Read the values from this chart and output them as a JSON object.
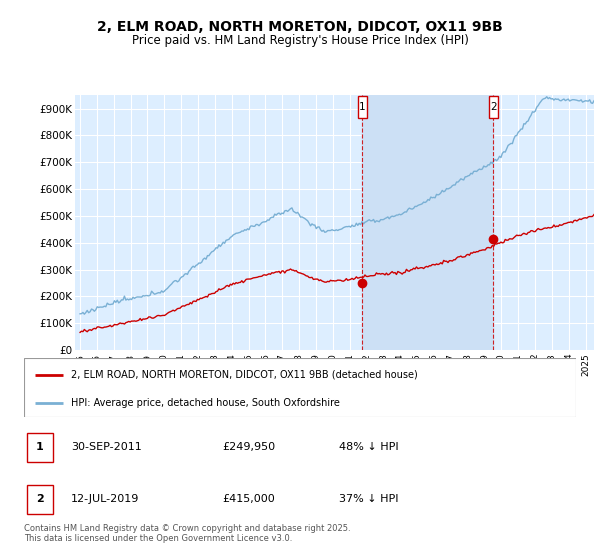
{
  "title": "2, ELM ROAD, NORTH MORETON, DIDCOT, OX11 9BB",
  "subtitle": "Price paid vs. HM Land Registry's House Price Index (HPI)",
  "background_color": "#ffffff",
  "plot_bg_color": "#ddeeff",
  "plot_bg_between": "#cce0f5",
  "grid_color": "#ffffff",
  "ylim": [
    0,
    950000
  ],
  "yticks": [
    0,
    100000,
    200000,
    300000,
    400000,
    500000,
    600000,
    700000,
    800000,
    900000
  ],
  "ytick_labels": [
    "£0",
    "£100K",
    "£200K",
    "£300K",
    "£400K",
    "£500K",
    "£600K",
    "£700K",
    "£800K",
    "£900K"
  ],
  "hpi_color": "#7ab0d4",
  "price_color": "#cc0000",
  "sale1_x": 2011.75,
  "sale1_y": 249950,
  "sale2_x": 2019.53,
  "sale2_y": 415000,
  "marker1_date_str": "30-SEP-2011",
  "marker1_price_str": "£249,950",
  "marker1_pct_str": "48% ↓ HPI",
  "marker2_date_str": "12-JUL-2019",
  "marker2_price_str": "£415,000",
  "marker2_pct_str": "37% ↓ HPI",
  "legend_line1": "2, ELM ROAD, NORTH MORETON, DIDCOT, OX11 9BB (detached house)",
  "legend_line2": "HPI: Average price, detached house, South Oxfordshire",
  "footer": "Contains HM Land Registry data © Crown copyright and database right 2025.\nThis data is licensed under the Open Government Licence v3.0.",
  "xlim_start": 1994.7,
  "xlim_end": 2025.5
}
